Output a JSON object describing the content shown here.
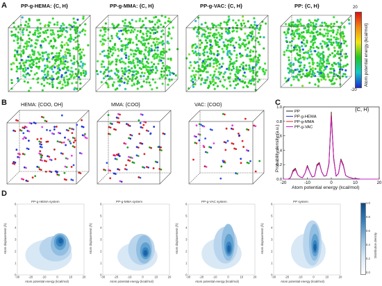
{
  "panels": {
    "a": {
      "letter": "A",
      "systems": [
        {
          "title": "PP-g-HEMA: {C, H}"
        },
        {
          "title": "PP-g-MMA: {C, H}"
        },
        {
          "title": "PP-g-VAC: {C, H}"
        },
        {
          "title": "PP: {C, H}"
        }
      ],
      "colorbar": {
        "label": "Atom potential energy (kcal/mol)",
        "max": "20",
        "min": "-20",
        "colors": [
          "#1a28d6",
          "#14c8c8",
          "#22c522",
          "#f2e614",
          "#f08a10",
          "#e01010"
        ]
      }
    },
    "b": {
      "letter": "B",
      "systems": [
        {
          "title": "HEMA: {COO, OH}"
        },
        {
          "title": "MMA: {COO}"
        },
        {
          "title": "VAC: {COO}"
        }
      ]
    },
    "c": {
      "letter": "C",
      "annotation": "{C, H}"
    },
    "d": {
      "letter": "D",
      "plots": [
        {
          "title": "PP-g-HEMA system"
        },
        {
          "title": "PP-g-MMA system"
        },
        {
          "title": "PP-g-VAC system"
        },
        {
          "title": "PP system"
        }
      ],
      "xlabel": "Atom potential energy (kcal/mol)",
      "ylabel": "Atom displacement (Å)",
      "xticks": [
        "-30",
        "-20",
        "-10",
        "0",
        "10",
        "20"
      ],
      "yticks": [
        "0",
        "1",
        "2",
        "3",
        "4",
        "5",
        "6"
      ],
      "colorbar_label": "Distribution density",
      "colorbar_ticks": [
        "1.0",
        "0.8",
        "0.6",
        "0.4",
        "0.2",
        "0.0"
      ]
    }
  },
  "chart_data": {
    "type": "line",
    "title": "",
    "xlabel": "Atom potential energy (kcal/mol)",
    "ylabel": "Probability density (a.u.)",
    "xlim": [
      -20,
      20
    ],
    "ylim": [
      0,
      1.0
    ],
    "xticks": [
      "-20",
      "-10",
      "0",
      "10",
      "20"
    ],
    "yticks": [
      "0.0",
      "0.2",
      "0.4",
      "0.6",
      "0.8",
      "1.0"
    ],
    "legend_position": "top-left",
    "x": [
      -20,
      -18,
      -17,
      -16,
      -15,
      -14,
      -13,
      -12,
      -11,
      -10,
      -9,
      -8,
      -7,
      -6,
      -5,
      -4,
      -3,
      -2,
      -1,
      0,
      1,
      2,
      3,
      4,
      5,
      6,
      7,
      8,
      9,
      10,
      12,
      15,
      20
    ],
    "series": [
      {
        "name": "PP",
        "color": "#222222",
        "values": [
          0,
          0,
          0.02,
          0.12,
          0.15,
          0.06,
          0.03,
          0.02,
          0.08,
          0.19,
          0.1,
          0.03,
          0.04,
          0.2,
          0.23,
          0.1,
          0.04,
          0.05,
          0.22,
          0.93,
          0.3,
          0.04,
          0.08,
          0.28,
          0.2,
          0.05,
          0.03,
          0.02,
          0.01,
          0.01,
          0,
          0,
          0
        ]
      },
      {
        "name": "PP-g-HEMA",
        "color": "#2030d0",
        "values": [
          0,
          0,
          0.02,
          0.11,
          0.14,
          0.06,
          0.03,
          0.02,
          0.08,
          0.18,
          0.1,
          0.03,
          0.04,
          0.19,
          0.22,
          0.1,
          0.04,
          0.05,
          0.21,
          0.88,
          0.28,
          0.04,
          0.08,
          0.27,
          0.19,
          0.05,
          0.03,
          0.02,
          0.01,
          0.01,
          0,
          0,
          0
        ]
      },
      {
        "name": "PP-g-MMA",
        "color": "#e02020",
        "values": [
          0,
          0,
          0.02,
          0.11,
          0.14,
          0.06,
          0.03,
          0.02,
          0.08,
          0.18,
          0.1,
          0.03,
          0.04,
          0.19,
          0.22,
          0.1,
          0.04,
          0.05,
          0.21,
          0.9,
          0.29,
          0.04,
          0.08,
          0.27,
          0.19,
          0.05,
          0.03,
          0.02,
          0.01,
          0.01,
          0,
          0,
          0
        ]
      },
      {
        "name": "PP-g-VAC",
        "color": "#c020c0",
        "values": [
          0,
          0,
          0.02,
          0.1,
          0.13,
          0.06,
          0.03,
          0.02,
          0.08,
          0.17,
          0.1,
          0.03,
          0.04,
          0.18,
          0.21,
          0.1,
          0.04,
          0.05,
          0.2,
          0.86,
          0.27,
          0.04,
          0.08,
          0.26,
          0.18,
          0.05,
          0.03,
          0.02,
          0.01,
          0.01,
          0,
          0,
          0
        ]
      }
    ]
  }
}
